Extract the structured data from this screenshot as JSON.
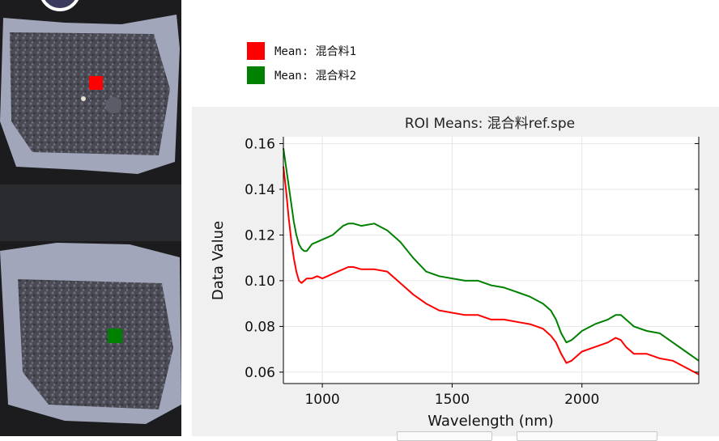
{
  "legend": {
    "items": [
      {
        "label": "Mean: 混合料1",
        "color": "#ff0000"
      },
      {
        "label": "Mean: 混合料2",
        "color": "#008000"
      }
    ]
  },
  "image_panel": {
    "roi_colors": [
      "#ff0000",
      "#008000"
    ]
  },
  "chart_data": {
    "type": "line",
    "title": "ROI Means: 混合料ref.spe",
    "xlabel": "Wavelength (nm)",
    "ylabel": "Data Value",
    "xlim": [
      850,
      2450
    ],
    "ylim": [
      0.055,
      0.163
    ],
    "xticks": [
      1000,
      1500,
      2000
    ],
    "xtick_labels": [
      "1000",
      "1500",
      "2000"
    ],
    "yticks": [
      0.06,
      0.08,
      0.1,
      0.12,
      0.14,
      0.16
    ],
    "ytick_labels": [
      "0.06",
      "0.08",
      "0.10",
      "0.12",
      "0.14",
      "0.16"
    ],
    "series": [
      {
        "name": "Mean: 混合料1",
        "color": "#ff0000",
        "x": [
          850,
          860,
          870,
          880,
          890,
          900,
          910,
          920,
          930,
          940,
          960,
          980,
          1000,
          1020,
          1040,
          1060,
          1080,
          1100,
          1120,
          1150,
          1200,
          1250,
          1300,
          1350,
          1400,
          1450,
          1500,
          1550,
          1600,
          1650,
          1700,
          1750,
          1800,
          1850,
          1880,
          1900,
          1920,
          1940,
          1960,
          1980,
          2000,
          2050,
          2100,
          2130,
          2150,
          2170,
          2200,
          2250,
          2300,
          2350,
          2400,
          2450
        ],
        "y": [
          0.15,
          0.14,
          0.128,
          0.118,
          0.11,
          0.104,
          0.1,
          0.099,
          0.1,
          0.101,
          0.101,
          0.102,
          0.101,
          0.102,
          0.103,
          0.104,
          0.105,
          0.106,
          0.106,
          0.105,
          0.105,
          0.104,
          0.099,
          0.094,
          0.09,
          0.087,
          0.086,
          0.085,
          0.085,
          0.083,
          0.083,
          0.082,
          0.081,
          0.079,
          0.076,
          0.073,
          0.068,
          0.064,
          0.065,
          0.067,
          0.069,
          0.071,
          0.073,
          0.075,
          0.074,
          0.071,
          0.068,
          0.068,
          0.066,
          0.065,
          0.062,
          0.059
        ]
      },
      {
        "name": "Mean: 混合料2",
        "color": "#008000",
        "x": [
          850,
          860,
          870,
          880,
          890,
          900,
          910,
          920,
          930,
          940,
          960,
          980,
          1000,
          1020,
          1040,
          1060,
          1080,
          1100,
          1120,
          1150,
          1200,
          1250,
          1300,
          1350,
          1400,
          1450,
          1500,
          1550,
          1600,
          1650,
          1700,
          1750,
          1800,
          1850,
          1880,
          1900,
          1920,
          1940,
          1960,
          1980,
          2000,
          2050,
          2100,
          2130,
          2150,
          2170,
          2200,
          2250,
          2300,
          2350,
          2400,
          2450
        ],
        "y": [
          0.158,
          0.15,
          0.142,
          0.134,
          0.126,
          0.12,
          0.116,
          0.114,
          0.113,
          0.113,
          0.116,
          0.117,
          0.118,
          0.119,
          0.12,
          0.122,
          0.124,
          0.125,
          0.125,
          0.124,
          0.125,
          0.122,
          0.117,
          0.11,
          0.104,
          0.102,
          0.101,
          0.1,
          0.1,
          0.098,
          0.097,
          0.095,
          0.093,
          0.09,
          0.087,
          0.083,
          0.077,
          0.073,
          0.074,
          0.076,
          0.078,
          0.081,
          0.083,
          0.085,
          0.085,
          0.083,
          0.08,
          0.078,
          0.077,
          0.073,
          0.069,
          0.065
        ]
      }
    ]
  }
}
